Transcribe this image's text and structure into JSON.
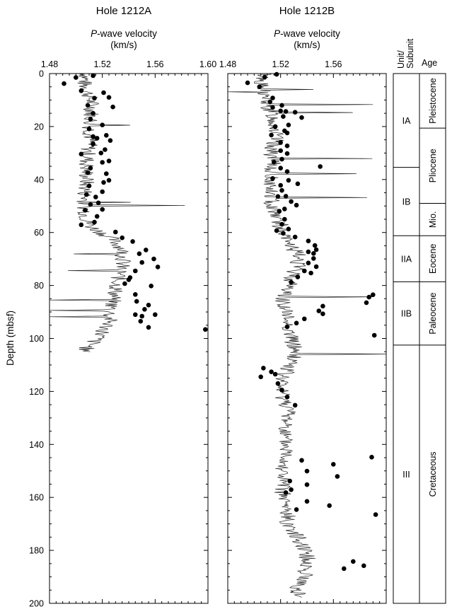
{
  "chart_data": [
    {
      "type": "scatter",
      "title": "Hole 1212A",
      "xlabel_italic": "P",
      "xlabel_rest": "-wave velocity",
      "xlabel_units": "(km/s)",
      "ylabel": "Depth (mbsf)",
      "xlim": [
        1.48,
        1.6
      ],
      "ylim": [
        0,
        200
      ],
      "x_ticks": [
        "1.48",
        "1.52",
        "1.56",
        "1.60"
      ],
      "y_ticks": [
        "0",
        "20",
        "40",
        "60",
        "80",
        "100",
        "120",
        "140",
        "160",
        "180",
        "200"
      ],
      "y_inverted": true,
      "log_profile": {
        "depth_range": [
          0,
          105
        ],
        "depth": [
          0,
          4,
          8,
          12,
          16,
          20,
          25,
          30,
          35,
          40,
          45,
          50,
          55,
          58,
          62,
          66,
          70,
          74,
          78,
          82,
          86,
          90,
          94,
          98,
          102,
          105
        ],
        "velocity": [
          1.508,
          1.506,
          1.51,
          1.512,
          1.512,
          1.511,
          1.511,
          1.509,
          1.508,
          1.508,
          1.507,
          1.507,
          1.508,
          1.512,
          1.526,
          1.535,
          1.536,
          1.534,
          1.532,
          1.53,
          1.528,
          1.526,
          1.525,
          1.52,
          1.512,
          1.505
        ]
      },
      "points": [
        [
          1.513,
          0.8
        ],
        [
          1.5,
          1.5
        ],
        [
          1.491,
          3.8
        ],
        [
          1.504,
          6.5
        ],
        [
          1.521,
          7.2
        ],
        [
          1.525,
          9.0
        ],
        [
          1.514,
          9.3
        ],
        [
          1.528,
          12.6
        ],
        [
          1.509,
          12.0
        ],
        [
          1.513,
          15.0
        ],
        [
          1.511,
          17.2
        ],
        [
          1.52,
          19.4
        ],
        [
          1.51,
          20.9
        ],
        [
          1.513,
          23.8
        ],
        [
          1.523,
          23.3
        ],
        [
          1.516,
          24.4
        ],
        [
          1.526,
          25.3
        ],
        [
          1.513,
          26.6
        ],
        [
          1.522,
          28.7
        ],
        [
          1.519,
          30.0
        ],
        [
          1.504,
          30.4
        ],
        [
          1.525,
          33.0
        ],
        [
          1.52,
          33.5
        ],
        [
          1.511,
          35.7
        ],
        [
          1.509,
          37.4
        ],
        [
          1.523,
          37.8
        ],
        [
          1.525,
          40.3
        ],
        [
          1.521,
          41.1
        ],
        [
          1.51,
          42.4
        ],
        [
          1.508,
          45.7
        ],
        [
          1.52,
          44.6
        ],
        [
          1.515,
          46.6
        ],
        [
          1.511,
          49.4
        ],
        [
          1.517,
          48.8
        ],
        [
          1.52,
          51.3
        ],
        [
          1.507,
          51.6
        ],
        [
          1.516,
          53.9
        ],
        [
          1.514,
          56.1
        ],
        [
          1.504,
          57.1
        ],
        [
          1.53,
          59.8
        ],
        [
          1.535,
          62.0
        ],
        [
          1.543,
          63.4
        ],
        [
          1.553,
          66.6
        ],
        [
          1.548,
          68.0
        ],
        [
          1.559,
          70.0
        ],
        [
          1.55,
          71.3
        ],
        [
          1.562,
          73.0
        ],
        [
          1.545,
          74.5
        ],
        [
          1.541,
          77.0
        ],
        [
          1.54,
          77.8
        ],
        [
          1.537,
          79.3
        ],
        [
          1.557,
          80.2
        ],
        [
          1.545,
          83.4
        ],
        [
          1.546,
          86.0
        ],
        [
          1.555,
          87.4
        ],
        [
          1.552,
          89.0
        ],
        [
          1.545,
          91.0
        ],
        [
          1.55,
          91.6
        ],
        [
          1.56,
          91.0
        ],
        [
          1.549,
          93.5
        ],
        [
          1.555,
          95.8
        ],
        [
          1.598,
          96.6
        ]
      ]
    },
    {
      "type": "scatter",
      "title": "Hole 1212B",
      "xlabel_italic": "P",
      "xlabel_rest": "-wave velocity",
      "xlabel_units": "(km/s)",
      "xlim": [
        1.48,
        1.6
      ],
      "ylim": [
        0,
        200
      ],
      "x_ticks": [
        "1.48",
        "1.52",
        "1.56"
      ],
      "y_inverted": true,
      "log_profile": {
        "depth_range": [
          0,
          198
        ],
        "depth": [
          0,
          4,
          8,
          12,
          16,
          20,
          25,
          30,
          35,
          40,
          45,
          50,
          55,
          60,
          65,
          70,
          75,
          80,
          85,
          90,
          95,
          100,
          105,
          110,
          114,
          118,
          122,
          126,
          130,
          134,
          137,
          140,
          145,
          150,
          155,
          160,
          165,
          170,
          180,
          185,
          190,
          195,
          198
        ],
        "velocity": [
          1.508,
          1.505,
          1.508,
          1.51,
          1.514,
          1.516,
          1.516,
          1.513,
          1.514,
          1.513,
          1.512,
          1.514,
          1.519,
          1.52,
          1.528,
          1.535,
          1.53,
          1.527,
          1.522,
          1.524,
          1.526,
          1.528,
          1.532,
          1.528,
          1.522,
          1.52,
          1.522,
          1.526,
          1.525,
          1.525,
          1.522,
          1.524,
          1.525,
          1.522,
          1.521,
          1.522,
          1.524,
          1.526,
          1.54,
          1.54,
          1.538,
          1.532,
          1.534
        ]
      },
      "points": [
        [
          1.517,
          0.3
        ],
        [
          1.508,
          1.3
        ],
        [
          1.495,
          3.5
        ],
        [
          1.504,
          5.0
        ],
        [
          1.514,
          9.2
        ],
        [
          1.512,
          10.7
        ],
        [
          1.521,
          12.0
        ],
        [
          1.514,
          12.8
        ],
        [
          1.52,
          14.1
        ],
        [
          1.524,
          14.3
        ],
        [
          1.531,
          14.6
        ],
        [
          1.522,
          16.2
        ],
        [
          1.536,
          16.6
        ],
        [
          1.526,
          19.4
        ],
        [
          1.516,
          20.0
        ],
        [
          1.523,
          21.6
        ],
        [
          1.525,
          22.4
        ],
        [
          1.513,
          23.2
        ],
        [
          1.52,
          26.0
        ],
        [
          1.525,
          27.3
        ],
        [
          1.52,
          29.1
        ],
        [
          1.525,
          30.2
        ],
        [
          1.521,
          32.3
        ],
        [
          1.515,
          33.4
        ],
        [
          1.55,
          35.1
        ],
        [
          1.52,
          35.7
        ],
        [
          1.525,
          37.0
        ],
        [
          1.514,
          39.6
        ],
        [
          1.526,
          40.3
        ],
        [
          1.52,
          42.2
        ],
        [
          1.533,
          41.6
        ],
        [
          1.521,
          44.1
        ],
        [
          1.518,
          46.4
        ],
        [
          1.524,
          46.3
        ],
        [
          1.528,
          48.3
        ],
        [
          1.532,
          49.7
        ],
        [
          1.523,
          51.1
        ],
        [
          1.519,
          52.0
        ],
        [
          1.523,
          55.0
        ],
        [
          1.521,
          56.9
        ],
        [
          1.526,
          58.7
        ],
        [
          1.517,
          59.3
        ],
        [
          1.522,
          60.3
        ],
        [
          1.531,
          61.7
        ],
        [
          1.541,
          63.2
        ],
        [
          1.546,
          64.9
        ],
        [
          1.547,
          66.5
        ],
        [
          1.541,
          67.3
        ],
        [
          1.545,
          67.9
        ],
        [
          1.545,
          69.8
        ],
        [
          1.541,
          71.5
        ],
        [
          1.547,
          72.9
        ],
        [
          1.538,
          74.5
        ],
        [
          1.543,
          75.3
        ],
        [
          1.533,
          76.8
        ],
        [
          1.528,
          78.8
        ],
        [
          1.59,
          83.5
        ],
        [
          1.587,
          84.4
        ],
        [
          1.585,
          86.5
        ],
        [
          1.552,
          87.8
        ],
        [
          1.549,
          89.6
        ],
        [
          1.552,
          90.7
        ],
        [
          1.538,
          92.6
        ],
        [
          1.532,
          94.2
        ],
        [
          1.525,
          95.6
        ],
        [
          1.591,
          98.8
        ],
        [
          1.507,
          111.2
        ],
        [
          1.513,
          112.6
        ],
        [
          1.516,
          113.5
        ],
        [
          1.505,
          114.5
        ],
        [
          1.518,
          117.0
        ],
        [
          1.521,
          119.5
        ],
        [
          1.525,
          122.1
        ],
        [
          1.531,
          125.2
        ],
        [
          1.589,
          144.8
        ],
        [
          1.536,
          146.0
        ],
        [
          1.56,
          147.5
        ],
        [
          1.54,
          150.1
        ],
        [
          1.563,
          152.1
        ],
        [
          1.527,
          153.8
        ],
        [
          1.54,
          155.2
        ],
        [
          1.528,
          157.1
        ],
        [
          1.524,
          158.2
        ],
        [
          1.54,
          161.5
        ],
        [
          1.557,
          163.1
        ],
        [
          1.532,
          164.6
        ],
        [
          1.592,
          166.5
        ],
        [
          1.575,
          184.2
        ],
        [
          1.583,
          185.8
        ],
        [
          1.568,
          186.9
        ]
      ]
    }
  ],
  "stratigraphy": {
    "unit_header": "Unit/\nSubunit",
    "age_header": "Age",
    "units": [
      {
        "label": "IA",
        "top": 0,
        "bottom": 35.4
      },
      {
        "label": "IB",
        "top": 35.4,
        "bottom": 61.2
      },
      {
        "label": "IIA",
        "top": 61.2,
        "bottom": 78.6
      },
      {
        "label": "IIB",
        "top": 78.6,
        "bottom": 102.5
      },
      {
        "label": "III",
        "top": 102.5,
        "bottom": 200
      }
    ],
    "ages": [
      {
        "label": "Pleistocene",
        "top": 0,
        "bottom": 20.6
      },
      {
        "label": "Pliocene",
        "top": 20.6,
        "bottom": 49.0
      },
      {
        "label": "Mio.",
        "top": 49.0,
        "bottom": 61.2
      },
      {
        "label": "Eocene",
        "top": 61.2,
        "bottom": 78.6
      },
      {
        "label": "Paleocene",
        "top": 78.6,
        "bottom": 102.5
      },
      {
        "label": "Cretaceous",
        "top": 102.5,
        "bottom": 200
      }
    ]
  }
}
